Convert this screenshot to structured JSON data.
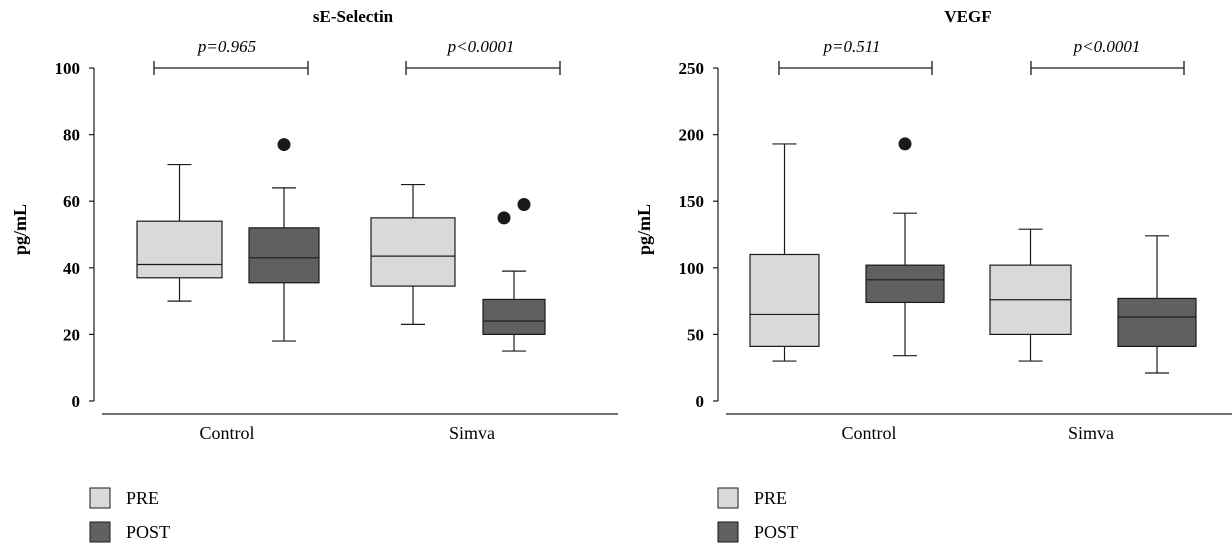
{
  "colors": {
    "pre": "#d9d9d9",
    "post": "#606060",
    "stroke": "#1a1a1a"
  },
  "legend": {
    "items": [
      "PRE",
      "POST"
    ]
  },
  "chart_data": [
    {
      "type": "box",
      "title": "sE-Selectin",
      "ylabel": "pg/mL",
      "ylim": [
        0,
        100
      ],
      "yticks": [
        0,
        20,
        40,
        60,
        80,
        100
      ],
      "categories": [
        "Control",
        "Simva"
      ],
      "series": [
        {
          "name": "PRE",
          "boxes": [
            {
              "min": 30,
              "q1": 37,
              "median": 41,
              "q3": 54,
              "max": 71,
              "outliers": []
            },
            {
              "min": 23,
              "q1": 34.5,
              "median": 43.5,
              "q3": 55,
              "max": 65,
              "outliers": []
            }
          ]
        },
        {
          "name": "POST",
          "boxes": [
            {
              "min": 18,
              "q1": 35.5,
              "median": 43,
              "q3": 52,
              "max": 64,
              "outliers": [
                77
              ]
            },
            {
              "min": 15,
              "q1": 20,
              "median": 24,
              "q3": 30.5,
              "max": 39,
              "outliers": [
                55,
                59
              ]
            }
          ]
        }
      ],
      "annotations": [
        "p=0.965",
        "p<0.0001"
      ]
    },
    {
      "type": "box",
      "title": "VEGF",
      "ylabel": "pg/mL",
      "ylim": [
        0,
        250
      ],
      "yticks": [
        0,
        50,
        100,
        150,
        200,
        250
      ],
      "categories": [
        "Control",
        "Simva"
      ],
      "series": [
        {
          "name": "PRE",
          "boxes": [
            {
              "min": 30,
              "q1": 41,
              "median": 65,
              "q3": 110,
              "max": 193,
              "outliers": []
            },
            {
              "min": 30,
              "q1": 50,
              "median": 76,
              "q3": 102,
              "max": 129,
              "outliers": []
            }
          ]
        },
        {
          "name": "POST",
          "boxes": [
            {
              "min": 34,
              "q1": 74,
              "median": 91,
              "q3": 102,
              "max": 141,
              "outliers": [
                193
              ]
            },
            {
              "min": 21,
              "q1": 41,
              "median": 63,
              "q3": 77,
              "max": 124,
              "outliers": []
            }
          ]
        }
      ],
      "annotations": [
        "p=0.511",
        "p<0.0001"
      ]
    }
  ]
}
